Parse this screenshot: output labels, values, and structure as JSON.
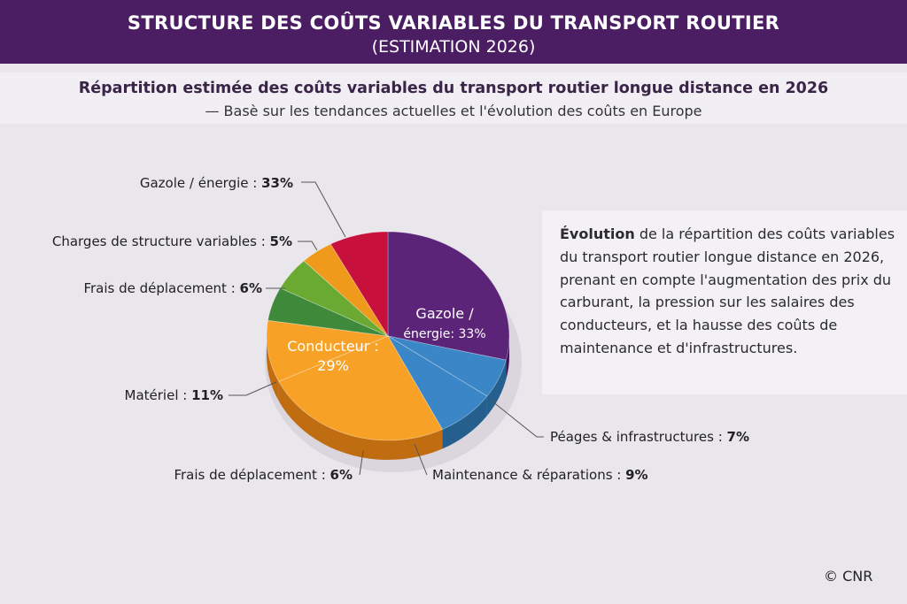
{
  "header": {
    "title": "STRUCTURE DES COÛTS VARIABLES DU TRANSPORT ROUTIER",
    "subtitle": "(ESTIMATION 2026)"
  },
  "chart_header": {
    "title": "Répartition estimée des coûts variables du transport routier longue distance en 2026",
    "subtitle": "— Basè sur les tendances actuelles et l'évolution des coûts en Europe"
  },
  "chart_data": {
    "type": "pie",
    "title": "Répartition estimée des coûts variables du transport routier longue distance en 2026",
    "slices": [
      {
        "label": "Gazole / énergie",
        "value": 33,
        "color": "#5b2479",
        "side": "#3f1455",
        "inner_line1": "Gazole /",
        "inner_line2": "énergie: 33%",
        "outer_name": "Gazole / énergie : ",
        "outer_pct": "33%"
      },
      {
        "label": "Péages & infrastructures",
        "value": 7,
        "color": "#3a86c6",
        "side": "#245f8e",
        "outer_name": "Péages & infrastructures : ",
        "outer_pct": "7%"
      },
      {
        "label": "Maintenance & réparations",
        "value": 9,
        "color": "#3a86c6",
        "side": "#245f8e",
        "outer_name": "Maintenance & réparations : ",
        "outer_pct": "9%"
      },
      {
        "label": "Conducteur",
        "value": 29,
        "color": "#f7a227",
        "side": "#c06c10",
        "inner_line1": "Conducteur :",
        "inner_line2": "29%",
        "outer_name": "Frais de déplacement : ",
        "outer_pct": "6%"
      },
      {
        "label": "Matériel",
        "value": 11,
        "color": "#f7a227",
        "side": "#c06c10",
        "outer_name": "Matériel : ",
        "outer_pct": "11%"
      },
      {
        "label": "Frais de déplacement",
        "value": 6,
        "color": "#3e8a3a",
        "side": "#2a6326",
        "outer_name": "Frais de déplacement : ",
        "outer_pct": "6%"
      },
      {
        "label": "Frais de déplacement (vert clair)",
        "value": 6,
        "color": "#6aaa32",
        "side": "#4b7d20"
      },
      {
        "label": "Charges de structure variables",
        "value": 5,
        "color": "#ef9a1a",
        "side": "#b46e0c",
        "outer_name": "Charges de structure variables : ",
        "outer_pct": "5%"
      },
      {
        "label": "Gazole / énergie (rouge)",
        "value": 9,
        "color": "#c8103c",
        "side": "#8e0a2a"
      }
    ]
  },
  "callout": {
    "lead": "Évolution",
    "text": " de la répartition des coûts variables du transport routier longue distance en 2026, prenant en compte l'augmentation des prix du carburant, la pression sur les salaires des conducteurs, et la hausse des coûts de maintenance et d'infrastructures."
  },
  "footer": {
    "copyright": "© CNR"
  }
}
